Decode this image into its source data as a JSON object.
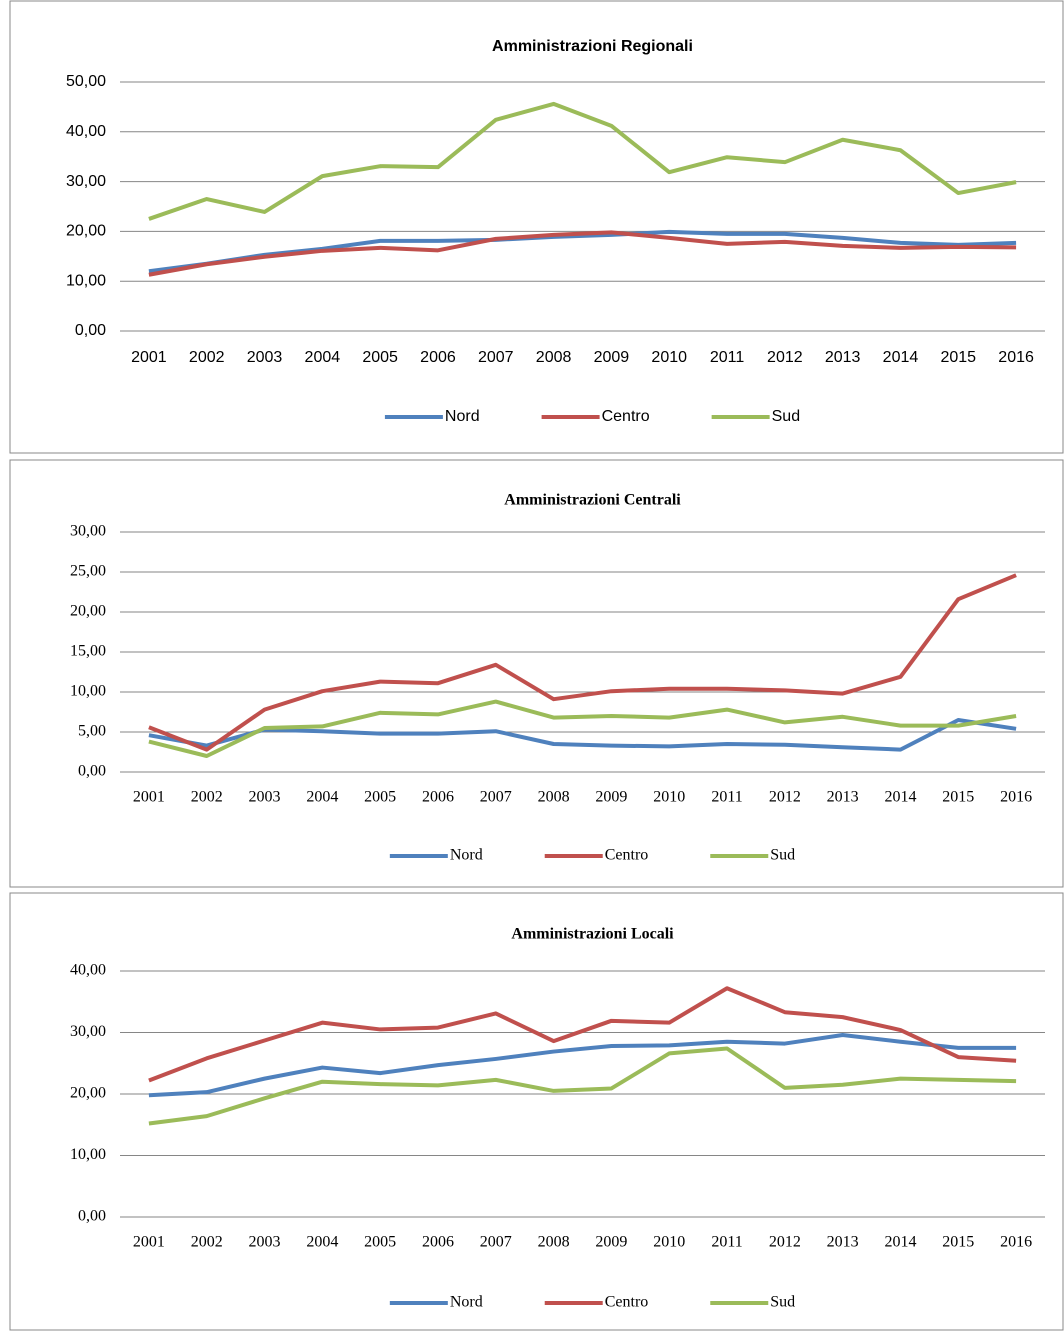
{
  "chart_data": [
    {
      "type": "line",
      "title": "Amministrazioni Regionali",
      "categories": [
        "2001",
        "2002",
        "2003",
        "2004",
        "2005",
        "2006",
        "2007",
        "2008",
        "2009",
        "2010",
        "2011",
        "2012",
        "2013",
        "2014",
        "2015",
        "2016"
      ],
      "series": [
        {
          "name": "Nord",
          "color": "#4f81bd",
          "values": [
            12.0,
            13.5,
            15.3,
            16.5,
            18.1,
            18.1,
            18.3,
            18.9,
            19.3,
            19.9,
            19.5,
            19.5,
            18.7,
            17.7,
            17.3,
            17.7
          ]
        },
        {
          "name": "Centro",
          "color": "#c0504d",
          "values": [
            11.3,
            13.4,
            14.9,
            16.1,
            16.7,
            16.2,
            18.5,
            19.3,
            19.8,
            18.7,
            17.5,
            17.9,
            17.1,
            16.7,
            16.9,
            16.8
          ]
        },
        {
          "name": "Sud",
          "color": "#9bbb59",
          "values": [
            22.5,
            26.5,
            23.9,
            31.1,
            33.1,
            32.9,
            42.4,
            45.6,
            41.2,
            31.9,
            34.9,
            33.9,
            38.4,
            36.3,
            27.7,
            29.9
          ]
        }
      ],
      "ylim": [
        0,
        50
      ],
      "yticks": [
        {
          "value": 0,
          "label": "0,00"
        },
        {
          "value": 10,
          "label": "10,00"
        },
        {
          "value": 20,
          "label": "20,00"
        },
        {
          "value": 30,
          "label": "30,00"
        },
        {
          "value": 40,
          "label": "40,00"
        },
        {
          "value": 50,
          "label": "50,00"
        }
      ],
      "grid": true,
      "legend": "bottom"
    },
    {
      "type": "line",
      "title": "Amministrazioni Centrali",
      "categories": [
        "2001",
        "2002",
        "2003",
        "2004",
        "2005",
        "2006",
        "2007",
        "2008",
        "2009",
        "2010",
        "2011",
        "2012",
        "2013",
        "2014",
        "2015",
        "2016"
      ],
      "series": [
        {
          "name": "Nord",
          "color": "#4f81bd",
          "values": [
            4.6,
            3.3,
            5.3,
            5.1,
            4.8,
            4.8,
            5.1,
            3.5,
            3.3,
            3.2,
            3.5,
            3.4,
            3.1,
            2.8,
            6.5,
            5.4
          ]
        },
        {
          "name": "Centro",
          "color": "#c0504d",
          "values": [
            5.6,
            2.8,
            7.8,
            10.1,
            11.3,
            11.1,
            13.4,
            9.1,
            10.1,
            10.4,
            10.4,
            10.2,
            9.8,
            11.9,
            21.6,
            24.6
          ]
        },
        {
          "name": "Sud",
          "color": "#9bbb59",
          "values": [
            3.8,
            2.0,
            5.5,
            5.7,
            7.4,
            7.2,
            8.8,
            6.8,
            7.0,
            6.8,
            7.8,
            6.2,
            6.9,
            5.8,
            5.8,
            7.0
          ]
        }
      ],
      "ylim": [
        0,
        30
      ],
      "yticks": [
        {
          "value": 0,
          "label": "0,00"
        },
        {
          "value": 5,
          "label": "5,00"
        },
        {
          "value": 10,
          "label": "10,00"
        },
        {
          "value": 15,
          "label": "15,00"
        },
        {
          "value": 20,
          "label": "20,00"
        },
        {
          "value": 25,
          "label": "25,00"
        },
        {
          "value": 30,
          "label": "30,00"
        }
      ],
      "grid": true,
      "legend": "bottom"
    },
    {
      "type": "line",
      "title": "Amministrazioni Locali",
      "categories": [
        "2001",
        "2002",
        "2003",
        "2004",
        "2005",
        "2006",
        "2007",
        "2008",
        "2009",
        "2010",
        "2011",
        "2012",
        "2013",
        "2014",
        "2015",
        "2016"
      ],
      "series": [
        {
          "name": "Nord",
          "color": "#4f81bd",
          "values": [
            19.8,
            20.3,
            22.5,
            24.3,
            23.4,
            24.7,
            25.7,
            26.9,
            27.8,
            27.9,
            28.5,
            28.2,
            29.6,
            28.5,
            27.5,
            27.5
          ]
        },
        {
          "name": "Centro",
          "color": "#c0504d",
          "values": [
            22.2,
            25.8,
            28.7,
            31.6,
            30.5,
            30.8,
            33.1,
            28.6,
            31.9,
            31.6,
            37.2,
            33.3,
            32.5,
            30.4,
            26.0,
            25.4
          ]
        },
        {
          "name": "Sud",
          "color": "#9bbb59",
          "values": [
            15.2,
            16.4,
            19.3,
            22.0,
            21.6,
            21.4,
            22.3,
            20.5,
            20.9,
            26.6,
            27.4,
            21.0,
            21.5,
            22.5,
            22.3,
            22.1
          ]
        }
      ],
      "ylim": [
        0,
        40
      ],
      "yticks": [
        {
          "value": 0,
          "label": "0,00"
        },
        {
          "value": 10,
          "label": "10,00"
        },
        {
          "value": 20,
          "label": "20,00"
        },
        {
          "value": 30,
          "label": "30,00"
        },
        {
          "value": 40,
          "label": "40,00"
        }
      ],
      "grid": true,
      "legend": "bottom"
    }
  ]
}
